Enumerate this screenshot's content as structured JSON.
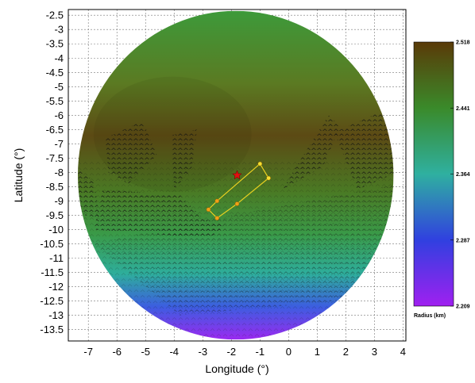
{
  "chart_data": {
    "type": "heatmap",
    "xlabel": "Longitude (°)",
    "ylabel": "Latitude (°)",
    "xlim": [
      -7.7,
      4.1
    ],
    "ylim": [
      -13.9,
      -2.3
    ],
    "x_ticks": [
      "-7",
      "-6",
      "-5",
      "-4",
      "-3",
      "-2",
      "-1",
      "0",
      "1",
      "2",
      "3",
      "4"
    ],
    "y_ticks": [
      "-2.5",
      "-3",
      "-3.5",
      "-4",
      "-4.5",
      "-5",
      "-5.5",
      "-6",
      "-6.5",
      "-7",
      "-7.5",
      "-8",
      "-8.5",
      "-9",
      "-9.5",
      "-10",
      "-10.5",
      "-11",
      "-11.5",
      "-12",
      "-12.5",
      "-13",
      "-13.5"
    ],
    "grid": true,
    "colorbar": {
      "title": "Radius (km)",
      "min": 2.209,
      "max": 2.518,
      "ticks": [
        "2.518",
        "2.441",
        "2.364",
        "2.287",
        "2.209"
      ],
      "colors": [
        "#5a3a08",
        "#3a8a2a",
        "#2fb0a0",
        "#3040e0",
        "#a020f0"
      ]
    },
    "marker": {
      "type": "star",
      "x": -1.8,
      "y": -8.1,
      "color": "#e01010"
    },
    "path": {
      "color": "#e8d020",
      "points": [
        {
          "x": -1.0,
          "y": -7.7
        },
        {
          "x": -0.7,
          "y": -8.2
        },
        {
          "x": -1.8,
          "y": -9.1
        },
        {
          "x": -2.5,
          "y": -9.6
        },
        {
          "x": -2.8,
          "y": -9.3
        },
        {
          "x": -2.5,
          "y": -9.0
        },
        {
          "x": -1.0,
          "y": -7.7
        }
      ]
    }
  }
}
